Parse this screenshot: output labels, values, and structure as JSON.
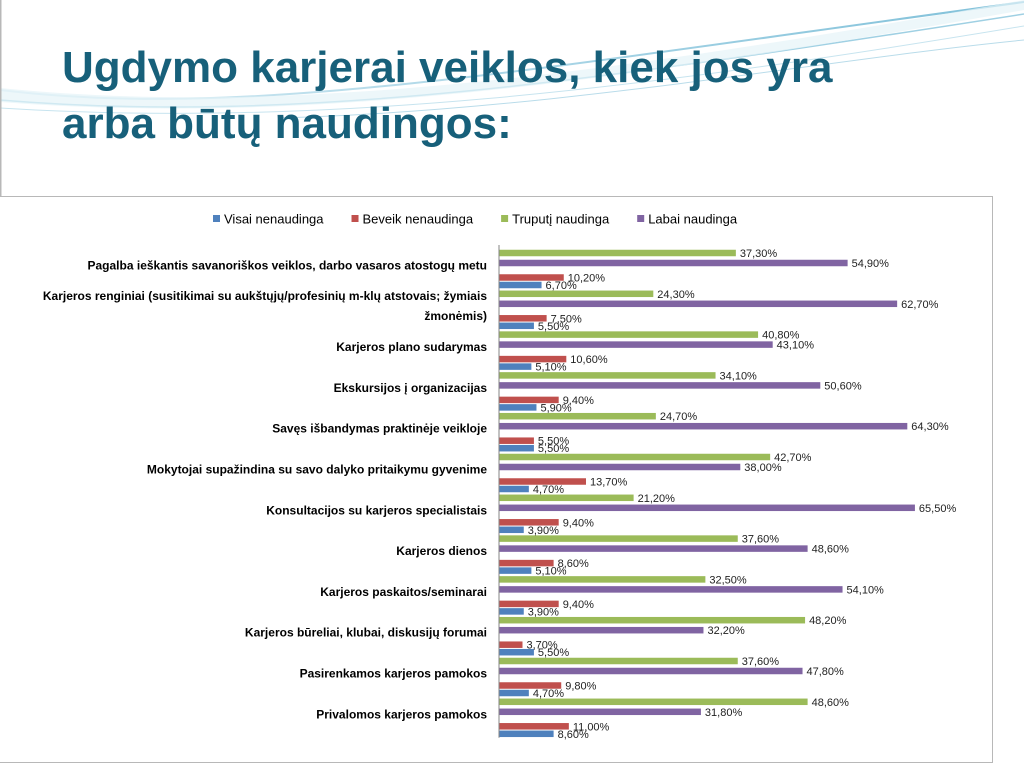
{
  "slide": {
    "title_line1": "Ugdymo karjerai veiklos, kiek jos yra",
    "title_line2": "arba būtų naudingos:"
  },
  "chart_data": {
    "type": "bar",
    "orientation": "horizontal",
    "title": "",
    "xlabel": "",
    "ylabel": "",
    "xlim": [
      0,
      70
    ],
    "grid": false,
    "legend_position": "top",
    "categories": [
      "Pagalba ieškantis savanoriškos veiklos, darbo vasaros atostogų metu",
      "Karjeros renginiai (susitikimai su aukštųjų/profesinių m-klų atstovais; žymiais žmonėmis)",
      "Karjeros plano sudarymas",
      "Ekskursijos į organizacijas",
      "Savęs išbandymas praktinėje veikloje",
      "Mokytojai supažindina su savo dalyko pritaikymu gyvenime",
      "Konsultacijos su karjeros specialistais",
      "Karjeros dienos",
      "Karjeros paskaitos/seminarai",
      "Karjeros būreliai, klubai, diskusijų forumai",
      "Pasirenkamos karjeros pamokos",
      "Privalomos karjeros pamokos"
    ],
    "category_lines": [
      [
        "Pagalba ieškantis savanoriškos veiklos, darbo vasaros atostogų metu"
      ],
      [
        "Karjeros renginiai (susitikimai su aukštųjų/profesinių m-klų atstovais; žymiais",
        "žmonėmis)"
      ],
      [
        "Karjeros plano sudarymas"
      ],
      [
        "Ekskursijos į organizacijas"
      ],
      [
        "Savęs išbandymas praktinėje veikloje"
      ],
      [
        "Mokytojai supažindina su savo dalyko pritaikymu gyvenime"
      ],
      [
        "Konsultacijos su karjeros specialistais"
      ],
      [
        "Karjeros dienos"
      ],
      [
        "Karjeros paskaitos/seminarai"
      ],
      [
        "Karjeros būreliai, klubai, diskusijų forumai"
      ],
      [
        "Pasirenkamos karjeros pamokos"
      ],
      [
        "Privalomos karjeros pamokos"
      ]
    ],
    "series": [
      {
        "name": "Visai nenaudinga",
        "color": "#4f81bd",
        "values": [
          6.7,
          5.5,
          5.1,
          5.9,
          5.5,
          4.7,
          3.9,
          5.1,
          3.9,
          5.5,
          4.7,
          8.6
        ],
        "labels": [
          "6,70%",
          "5,50%",
          "5,10%",
          "5,90%",
          "5,50%",
          "4,70%",
          "3,90%",
          "5,10%",
          "3,90%",
          "5,50%",
          "4,70%",
          "8,60%"
        ]
      },
      {
        "name": "Beveik nenaudinga",
        "color": "#c0504d",
        "values": [
          10.2,
          7.5,
          10.6,
          9.4,
          5.5,
          13.7,
          9.4,
          8.6,
          9.4,
          3.7,
          9.8,
          11.0
        ],
        "labels": [
          "10,20%",
          "7,50%",
          "10,60%",
          "9,40%",
          "5,50%",
          "13,70%",
          "9,40%",
          "8,60%",
          "9,40%",
          "3,70%",
          "9,80%",
          "11,00%"
        ]
      },
      {
        "name": "Truputį naudinga",
        "color": "#9bbb59",
        "values": [
          37.3,
          24.3,
          40.8,
          34.1,
          24.7,
          42.7,
          21.2,
          37.6,
          32.5,
          48.2,
          37.6,
          48.6
        ],
        "labels": [
          "37,30%",
          "24,30%",
          "40,80%",
          "34,10%",
          "24,70%",
          "42,70%",
          "21,20%",
          "37,60%",
          "32,50%",
          "48,20%",
          "37,60%",
          "48,60%"
        ]
      },
      {
        "name": "Labai naudinga",
        "color": "#8064a2",
        "values": [
          54.9,
          62.7,
          43.1,
          50.6,
          64.3,
          38.0,
          65.5,
          48.6,
          54.1,
          32.2,
          47.8,
          31.8
        ],
        "labels": [
          "54,90%",
          "62,70%",
          "43,10%",
          "50,60%",
          "64,30%",
          "38,00%",
          "65,50%",
          "48,60%",
          "54,10%",
          "32,20%",
          "47,80%",
          "31,80%"
        ]
      }
    ]
  },
  "colors": {
    "title": "#17607a",
    "frame_border": "#b8b8b8",
    "axis_line": "#868686",
    "label_text": "#000000"
  }
}
